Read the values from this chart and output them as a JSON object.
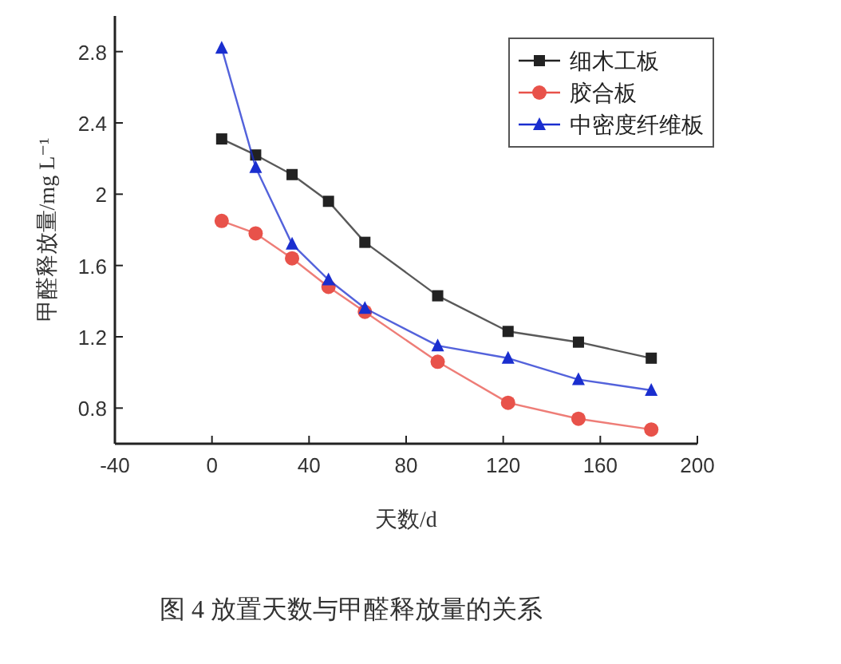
{
  "chart_data": {
    "type": "line",
    "xlabel": "天数/d",
    "ylabel": "甲醛释放量/mg L⁻¹",
    "annotations": [
      "图 4 放置天数与甲醛释放量的关系"
    ],
    "x": [
      4,
      18,
      33,
      48,
      63,
      93,
      122,
      151,
      181
    ],
    "series": [
      {
        "name": "细木工板",
        "color": "#222222",
        "marker": "square",
        "values": [
          2.31,
          2.22,
          2.11,
          1.96,
          1.73,
          1.43,
          1.23,
          1.17,
          1.08
        ]
      },
      {
        "name": "胶合板",
        "color": "#e8524a",
        "marker": "circle",
        "values": [
          1.85,
          1.78,
          1.64,
          1.48,
          1.34,
          1.06,
          0.83,
          0.74,
          0.68
        ]
      },
      {
        "name": "中密度纤维板",
        "color": "#1a2ecf",
        "marker": "triangle",
        "values": [
          2.82,
          2.15,
          1.72,
          1.52,
          1.36,
          1.15,
          1.08,
          0.96,
          0.9
        ]
      }
    ],
    "xlim": [
      -40,
      200
    ],
    "xticks": [
      -40,
      0,
      40,
      80,
      120,
      160,
      200
    ],
    "ylim": [
      0.6,
      3.0
    ],
    "yticks": [
      0.8,
      1.2,
      1.6,
      2.0,
      2.4,
      2.8
    ],
    "legend": "top right",
    "grid": false,
    "line_style": "solid"
  }
}
